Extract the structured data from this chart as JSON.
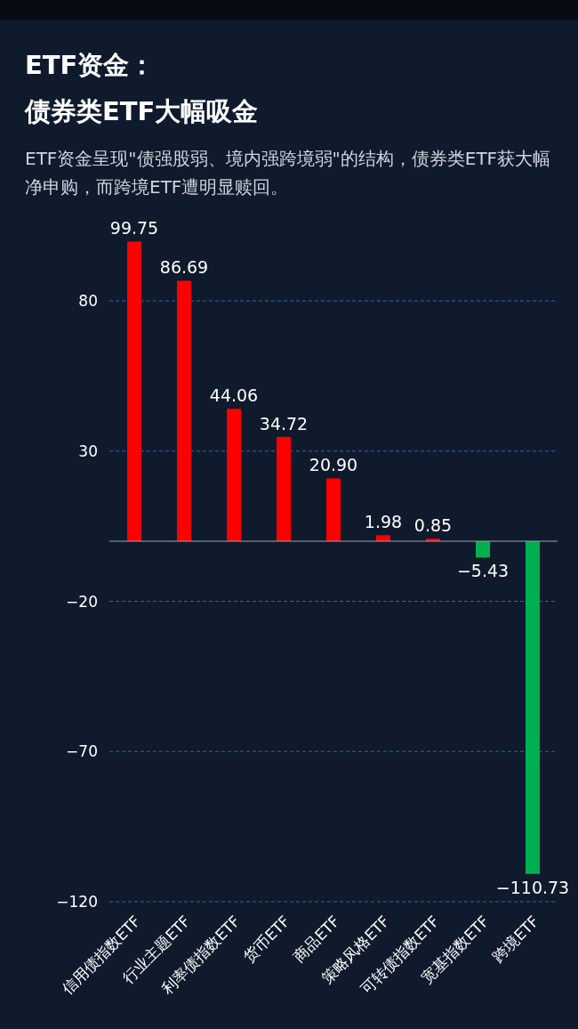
{
  "chart_data": {
    "type": "bar",
    "title": "ETF资金：债券类ETF大幅吸金",
    "subtitle": "ETF资金呈现\"债强股弱、境内强跨境弱\"的结构，债券类ETF获大幅净申购，而跨境ETF遭明显赎回。",
    "categories": [
      "信用债指数ETF",
      "行业主题ETF",
      "利率债指数ETF",
      "货币ETF",
      "商品ETF",
      "策略风格ETF",
      "可转债指数ETF",
      "宽基指数ETF",
      "跨境ETF"
    ],
    "values": [
      99.75,
      86.69,
      44.06,
      34.72,
      20.9,
      1.98,
      0.85,
      -5.43,
      -110.73
    ],
    "value_labels": [
      "99.75",
      "86.69",
      "44.06",
      "34.72",
      "20.90",
      "1.98",
      "0.85",
      "−5.43",
      "−110.73"
    ],
    "colors": [
      "#ff0000",
      "#ff0000",
      "#ff0000",
      "#ff0000",
      "#ff0000",
      "#ff0000",
      "#ff0000",
      "#00b050",
      "#00b050"
    ],
    "ylim": [
      -120,
      100
    ],
    "yticks": [
      80,
      30,
      {
        "value": -20,
        "label": "−20"
      },
      {
        "value": -70,
        "label": "−70"
      },
      {
        "value": -120,
        "label": "−120"
      }
    ],
    "grid": "y"
  }
}
